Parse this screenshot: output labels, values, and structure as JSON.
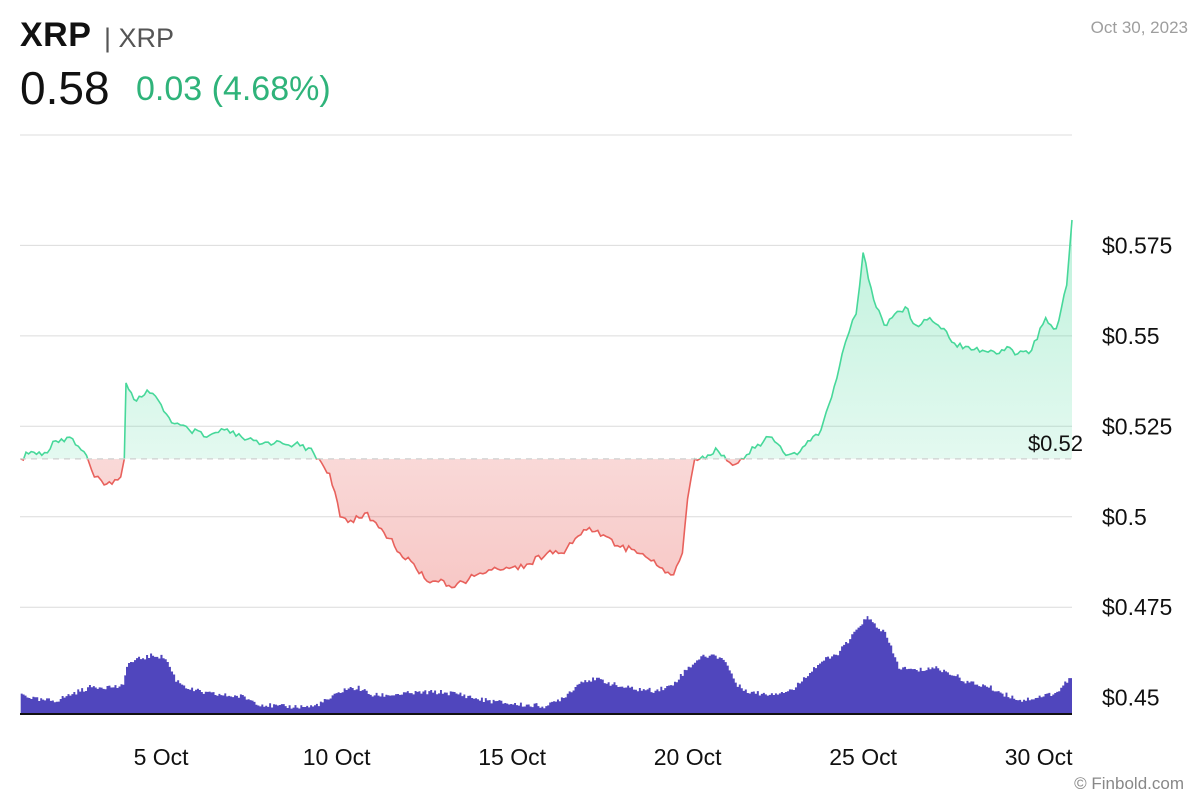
{
  "header": {
    "symbol": "XRP",
    "name": "| XRP",
    "date": "Oct 30, 2023",
    "price": "0.58",
    "change": "0.03 (4.68%)"
  },
  "colors": {
    "up": "#47d89a",
    "down": "#e8615c",
    "change_text": "#2fb37a",
    "volume": "#5046bd",
    "grid": "#dcdcdc"
  },
  "footer": {
    "credit": "© Finbold.com"
  },
  "chart_data": {
    "type": "line",
    "x_scale": "date",
    "x_ticks": [
      "5 Oct",
      "10 Oct",
      "15 Oct",
      "20 Oct",
      "25 Oct",
      "30 Oct"
    ],
    "x_tick_positions": [
      5,
      10,
      15,
      20,
      25,
      30
    ],
    "y_ticks": [
      0.45,
      0.475,
      0.5,
      0.525,
      0.55,
      0.575
    ],
    "y_tick_labels": [
      "$0.45",
      "$0.475",
      "$0.5",
      "$0.525",
      "$0.55",
      "$0.575"
    ],
    "ylim": [
      0.4455,
      0.6055
    ],
    "xlim": [
      0.98,
      30.95
    ],
    "baseline": 0.516,
    "baseline_label": "$0.52",
    "price_series": {
      "x": [
        1.0,
        1.3,
        1.6,
        2.0,
        2.4,
        2.8,
        3.1,
        3.3,
        3.6,
        3.85,
        3.95,
        4.0,
        4.3,
        4.6,
        5.0,
        5.3,
        5.8,
        6.3,
        6.8,
        7.3,
        7.8,
        8.3,
        8.8,
        9.2,
        9.5,
        9.8,
        10.1,
        10.4,
        10.8,
        11.2,
        11.5,
        11.8,
        12.2,
        12.5,
        12.9,
        13.2,
        13.6,
        14.0,
        14.5,
        15.0,
        15.5,
        16.0,
        16.4,
        16.8,
        17.2,
        17.6,
        18.0,
        18.4,
        18.8,
        19.2,
        19.6,
        19.85,
        20.0,
        20.2,
        20.5,
        20.8,
        21.2,
        21.6,
        22.0,
        22.4,
        22.8,
        23.2,
        23.5,
        23.8,
        24.1,
        24.4,
        24.6,
        24.8,
        25.0,
        25.3,
        25.6,
        25.9,
        26.2,
        26.5,
        26.9,
        27.3,
        27.6,
        28.0,
        28.4,
        28.8,
        29.1,
        29.4,
        29.8,
        30.2,
        30.5,
        30.8,
        30.95
      ],
      "y": [
        0.516,
        0.518,
        0.517,
        0.521,
        0.522,
        0.518,
        0.511,
        0.51,
        0.509,
        0.511,
        0.516,
        0.537,
        0.532,
        0.535,
        0.531,
        0.526,
        0.524,
        0.522,
        0.524,
        0.522,
        0.52,
        0.521,
        0.52,
        0.519,
        0.516,
        0.512,
        0.5,
        0.499,
        0.501,
        0.497,
        0.494,
        0.49,
        0.487,
        0.483,
        0.482,
        0.481,
        0.482,
        0.484,
        0.486,
        0.486,
        0.487,
        0.49,
        0.49,
        0.494,
        0.497,
        0.495,
        0.492,
        0.491,
        0.489,
        0.486,
        0.484,
        0.49,
        0.505,
        0.516,
        0.516,
        0.519,
        0.515,
        0.516,
        0.52,
        0.522,
        0.517,
        0.518,
        0.521,
        0.524,
        0.533,
        0.545,
        0.551,
        0.556,
        0.573,
        0.56,
        0.553,
        0.556,
        0.558,
        0.553,
        0.555,
        0.552,
        0.548,
        0.547,
        0.546,
        0.545,
        0.547,
        0.545,
        0.546,
        0.555,
        0.552,
        0.564,
        0.582
      ]
    },
    "volume_series": {
      "x": [
        1.0,
        1.5,
        2.0,
        2.5,
        3.0,
        3.5,
        3.9,
        4.0,
        4.4,
        4.8,
        5.1,
        5.4,
        5.8,
        6.3,
        6.8,
        7.3,
        7.8,
        8.3,
        8.8,
        9.3,
        9.8,
        10.2,
        10.6,
        11.0,
        11.5,
        12.0,
        12.5,
        13.0,
        13.5,
        14.0,
        14.5,
        15.0,
        15.5,
        16.0,
        16.5,
        17.0,
        17.5,
        18.0,
        18.5,
        19.0,
        19.5,
        20.0,
        20.3,
        20.6,
        21.0,
        21.4,
        21.8,
        22.2,
        22.6,
        23.0,
        23.4,
        23.8,
        24.2,
        24.6,
        24.9,
        25.1,
        25.3,
        25.6,
        26.0,
        26.5,
        27.0,
        27.5,
        28.0,
        28.5,
        29.0,
        29.5,
        30.0,
        30.5,
        30.9
      ],
      "v": [
        0.32,
        0.22,
        0.22,
        0.34,
        0.44,
        0.44,
        0.44,
        0.8,
        0.9,
        0.95,
        0.9,
        0.55,
        0.4,
        0.33,
        0.3,
        0.28,
        0.16,
        0.12,
        0.12,
        0.12,
        0.25,
        0.4,
        0.42,
        0.3,
        0.31,
        0.33,
        0.35,
        0.35,
        0.32,
        0.24,
        0.2,
        0.16,
        0.14,
        0.13,
        0.3,
        0.55,
        0.55,
        0.45,
        0.4,
        0.38,
        0.45,
        0.75,
        0.9,
        0.95,
        0.9,
        0.45,
        0.35,
        0.32,
        0.35,
        0.4,
        0.65,
        0.85,
        0.95,
        1.2,
        1.45,
        1.55,
        1.45,
        1.3,
        0.75,
        0.7,
        0.75,
        0.65,
        0.5,
        0.45,
        0.32,
        0.22,
        0.28,
        0.35,
        0.6
      ]
    }
  }
}
